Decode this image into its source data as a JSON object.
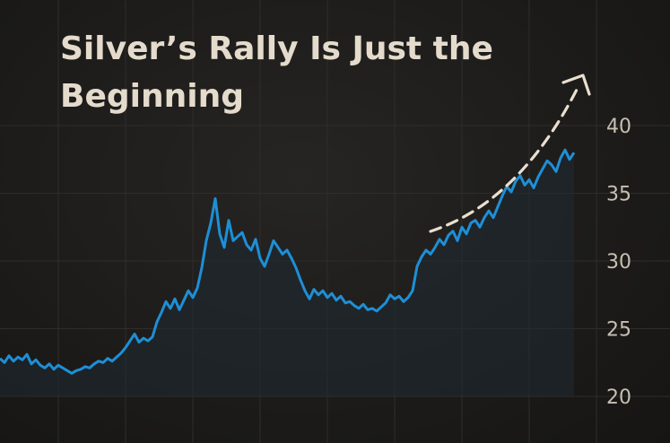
{
  "chart_data": {
    "type": "area",
    "title_lines": [
      "Silver’s Rally Is Just the",
      "Beginning"
    ],
    "xlabel": "",
    "ylabel": "",
    "ylim": [
      20,
      42
    ],
    "yticks": [
      20,
      25,
      30,
      35,
      40
    ],
    "y_axis_side": "right",
    "grid": true,
    "legend": "none",
    "series": [
      {
        "color": "#1e8fd6",
        "x": [
          0,
          1,
          2,
          3,
          4,
          5,
          6,
          7,
          8,
          9,
          10,
          11,
          12,
          13,
          14,
          15,
          16,
          17,
          18,
          19,
          20,
          21,
          22,
          23,
          24,
          25,
          26,
          27,
          28,
          29,
          30,
          31,
          32,
          33,
          34,
          35,
          36,
          37,
          38,
          39,
          40,
          41,
          42,
          43,
          44,
          45,
          46,
          47,
          48,
          49,
          50,
          51,
          52,
          53,
          54,
          55,
          56,
          57,
          58,
          59,
          60,
          61,
          62,
          63,
          64,
          65,
          66,
          67,
          68,
          69,
          70,
          71,
          72,
          73,
          74,
          75,
          76,
          77,
          78,
          79,
          80,
          81,
          82,
          83,
          84,
          85,
          86,
          87,
          88,
          89,
          90,
          91,
          92,
          93,
          94,
          95,
          96,
          97,
          98,
          99,
          100,
          101,
          102,
          103,
          104,
          105,
          106,
          107,
          108,
          109,
          110,
          111,
          112,
          113,
          114,
          115,
          116,
          117,
          118,
          119,
          120,
          121,
          122,
          123,
          124,
          125,
          126,
          127,
          128
        ],
        "values": [
          22.8,
          22.5,
          23.0,
          22.6,
          22.9,
          22.7,
          23.1,
          22.4,
          22.7,
          22.3,
          22.1,
          22.4,
          22.0,
          22.3,
          22.1,
          21.9,
          21.7,
          21.9,
          22.0,
          22.2,
          22.1,
          22.4,
          22.6,
          22.5,
          22.8,
          22.6,
          22.9,
          23.2,
          23.6,
          24.1,
          24.6,
          24.0,
          24.3,
          24.1,
          24.4,
          25.5,
          26.2,
          27.0,
          26.5,
          27.2,
          26.4,
          27.1,
          27.8,
          27.3,
          28.0,
          29.5,
          31.5,
          32.8,
          34.6,
          32.0,
          31.0,
          33.0,
          31.5,
          31.8,
          32.1,
          31.2,
          30.8,
          31.6,
          30.2,
          29.6,
          30.5,
          31.5,
          31.0,
          30.5,
          30.8,
          30.2,
          29.5,
          28.6,
          27.8,
          27.2,
          27.9,
          27.5,
          27.8,
          27.3,
          27.6,
          27.1,
          27.4,
          26.9,
          27.0,
          26.7,
          26.5,
          26.8,
          26.4,
          26.5,
          26.3,
          26.6,
          26.9,
          27.5,
          27.2,
          27.4,
          27.0,
          27.3,
          27.8,
          29.6,
          30.3,
          30.8,
          30.5,
          31.0,
          31.6,
          31.2,
          31.9,
          32.2,
          31.5,
          32.5,
          32.0,
          32.8,
          33.0,
          32.5,
          33.2,
          33.7,
          33.2,
          34.0,
          34.8,
          35.5,
          35.1,
          35.9,
          36.3,
          35.6,
          36.0,
          35.4,
          36.2,
          36.8,
          37.4,
          37.1,
          36.6,
          37.6,
          38.2,
          37.5,
          38.0
        ],
        "fill": true
      }
    ],
    "annotations": [
      {
        "type": "dashed-arrow",
        "description_color": "#e9dfcf",
        "direction": "up-right"
      }
    ]
  },
  "colors": {
    "background": "#1b1a18",
    "grid": "#2f2d2a",
    "line": "#1e8fd6",
    "area_fill": "#1f2a33",
    "title": "#e4dbcc",
    "ticks": "#c7bfb2",
    "arrow": "#e9dfcf"
  }
}
